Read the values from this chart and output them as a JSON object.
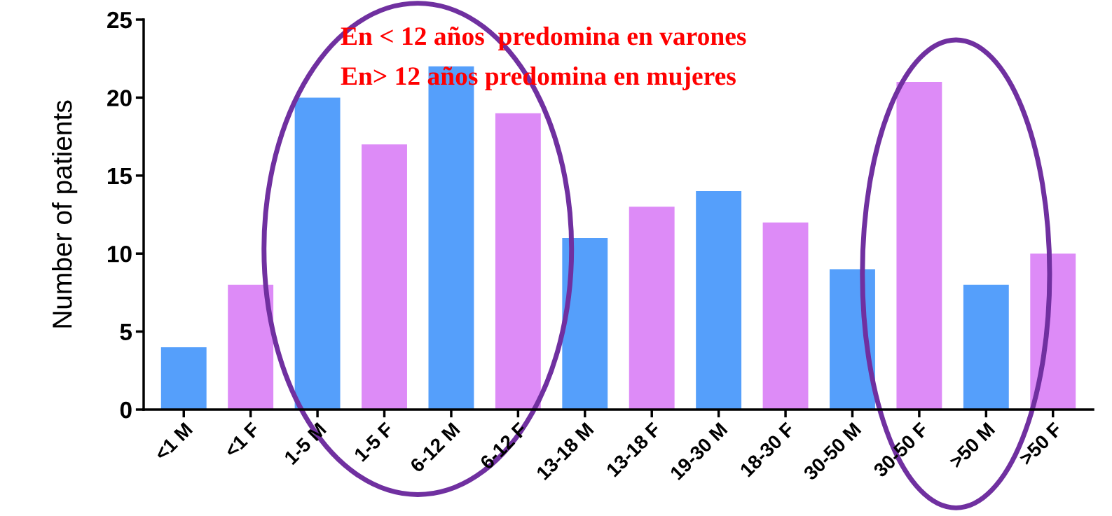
{
  "chart_data": {
    "type": "bar",
    "ylabel": "Number of patients",
    "categories": [
      "<1 M",
      "<1 F",
      "1-5 M",
      "1-5 F",
      "6-12 M",
      "6-12 F",
      "13-18 M",
      "13-18 F",
      "19-30 M",
      "18-30 F",
      "30-50 M",
      "30-50 F",
      ">50 M",
      ">50 F"
    ],
    "values": [
      4,
      8,
      20,
      17,
      22,
      19,
      11,
      13,
      14,
      12,
      9,
      21,
      8,
      10
    ],
    "colors": [
      "#559ffb",
      "#dd8bf7",
      "#559ffb",
      "#dd8bf7",
      "#559ffb",
      "#dd8bf7",
      "#559ffb",
      "#dd8bf7",
      "#559ffb",
      "#dd8bf7",
      "#559ffb",
      "#dd8bf7",
      "#559ffb",
      "#dd8bf7"
    ],
    "ylim": [
      0,
      25
    ],
    "yticks": [
      0,
      5,
      10,
      15,
      20,
      25
    ],
    "grid": false,
    "legend": false,
    "annotations": [
      "En < 12 años  predomina en varones",
      "En> 12 años predomina en mujeres"
    ]
  }
}
